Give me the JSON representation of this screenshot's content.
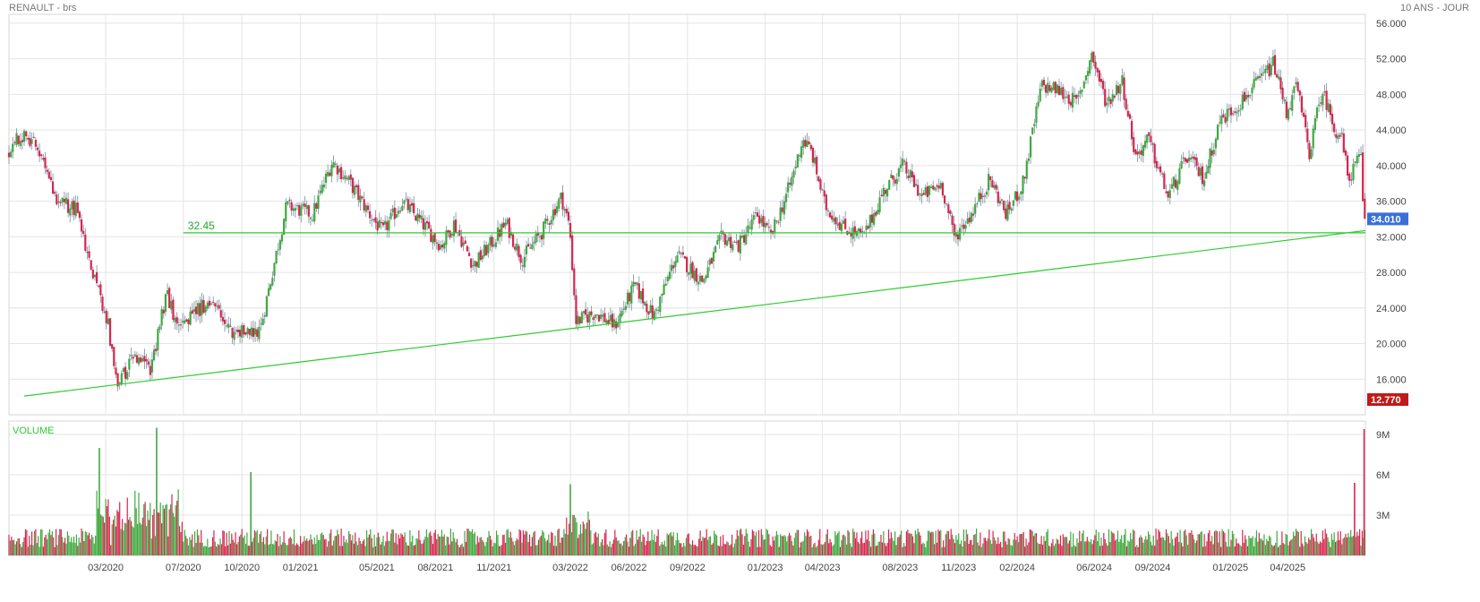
{
  "header": {
    "title": "RENAULT - brs",
    "period": "10 ANS - JOUR"
  },
  "colors": {
    "up": "#3fa93f",
    "down": "#d8254f",
    "trendline": "#2ecc2e",
    "last_price_badge": "#3b6fd8",
    "low_badge": "#c01a1a",
    "volume_label": "#2ecc2e"
  },
  "chart_data": [
    {
      "type": "candlestick",
      "name": "price",
      "title": "RENAULT - brs",
      "y_unit": "EUR",
      "ylim": [
        12.0,
        57.0
      ],
      "y_ticks": [
        56,
        52,
        48,
        44,
        40,
        36,
        32,
        28,
        24,
        20,
        16
      ],
      "y_tick_labels": [
        "56.000",
        "52.000",
        "48.000",
        "44.000",
        "40.000",
        "36.000",
        "32.000",
        "28.000",
        "24.000",
        "20.000",
        "16.000"
      ],
      "x_tick_labels": [
        "03/2020",
        "07/2020",
        "10/2020",
        "01/2021",
        "05/2021",
        "08/2021",
        "11/2021",
        "03/2022",
        "06/2022",
        "09/2022",
        "01/2023",
        "04/2023",
        "08/2023",
        "11/2023",
        "02/2024",
        "06/2024",
        "09/2024",
        "01/2025",
        "04/2025"
      ],
      "x_range": [
        "2019-10-01",
        "2025-08-01"
      ],
      "trend_path": [
        [
          "2019-10-01",
          41.5
        ],
        [
          "2019-10-20",
          43.5
        ],
        [
          "2019-11-15",
          42.0
        ],
        [
          "2019-12-15",
          36.0
        ],
        [
          "2020-01-15",
          35.0
        ],
        [
          "2020-02-10",
          28.0
        ],
        [
          "2020-03-05",
          22.0
        ],
        [
          "2020-03-20",
          14.8
        ],
        [
          "2020-04-10",
          18.5
        ],
        [
          "2020-05-10",
          16.8
        ],
        [
          "2020-06-05",
          26.0
        ],
        [
          "2020-06-20",
          21.5
        ],
        [
          "2020-07-15",
          23.5
        ],
        [
          "2020-08-10",
          24.5
        ],
        [
          "2020-09-15",
          21.5
        ],
        [
          "2020-10-28",
          21.0
        ],
        [
          "2020-12-10",
          35.5
        ],
        [
          "2021-01-20",
          34.5
        ],
        [
          "2021-02-20",
          40.5
        ],
        [
          "2021-03-20",
          38.0
        ],
        [
          "2021-04-20",
          34.5
        ],
        [
          "2021-05-10",
          32.5
        ],
        [
          "2021-06-10",
          36.0
        ],
        [
          "2021-07-05",
          34.0
        ],
        [
          "2021-08-10",
          31.0
        ],
        [
          "2021-08-30",
          33.5
        ],
        [
          "2021-09-30",
          28.8
        ],
        [
          "2021-10-25",
          31.0
        ],
        [
          "2021-11-20",
          33.5
        ],
        [
          "2021-12-15",
          29.5
        ],
        [
          "2022-01-15",
          32.5
        ],
        [
          "2022-02-15",
          36.5
        ],
        [
          "2022-02-28",
          33.0
        ],
        [
          "2022-03-10",
          22.5
        ],
        [
          "2022-04-10",
          23.5
        ],
        [
          "2022-05-10",
          22.0
        ],
        [
          "2022-06-10",
          26.5
        ],
        [
          "2022-07-10",
          23.0
        ],
        [
          "2022-08-15",
          30.0
        ],
        [
          "2022-09-25",
          27.0
        ],
        [
          "2022-10-25",
          32.0
        ],
        [
          "2022-11-20",
          31.0
        ],
        [
          "2022-12-20",
          34.5
        ],
        [
          "2023-01-10",
          32.0
        ],
        [
          "2023-02-10",
          38.0
        ],
        [
          "2023-03-01",
          43.0
        ],
        [
          "2023-03-15",
          41.5
        ],
        [
          "2023-04-05",
          35.5
        ],
        [
          "2023-05-05",
          33.0
        ],
        [
          "2023-06-05",
          32.0
        ],
        [
          "2023-07-05",
          37.0
        ],
        [
          "2023-08-05",
          40.0
        ],
        [
          "2023-09-05",
          36.5
        ],
        [
          "2023-10-05",
          38.0
        ],
        [
          "2023-10-25",
          32.0
        ],
        [
          "2023-11-20",
          34.5
        ],
        [
          "2023-12-20",
          38.5
        ],
        [
          "2024-01-15",
          34.5
        ],
        [
          "2024-02-10",
          38.0
        ],
        [
          "2024-03-10",
          49.0
        ],
        [
          "2024-04-05",
          48.5
        ],
        [
          "2024-05-05",
          47.0
        ],
        [
          "2024-05-28",
          52.5
        ],
        [
          "2024-06-20",
          47.0
        ],
        [
          "2024-07-15",
          49.5
        ],
        [
          "2024-08-05",
          41.0
        ],
        [
          "2024-08-25",
          43.0
        ],
        [
          "2024-09-25",
          36.5
        ],
        [
          "2024-10-25",
          41.0
        ],
        [
          "2024-11-20",
          38.5
        ],
        [
          "2024-12-15",
          45.0
        ],
        [
          "2025-01-15",
          47.0
        ],
        [
          "2025-02-15",
          49.5
        ],
        [
          "2025-03-10",
          51.5
        ],
        [
          "2025-03-30",
          46.0
        ],
        [
          "2025-04-15",
          49.0
        ],
        [
          "2025-05-05",
          41.5
        ],
        [
          "2025-05-25",
          48.5
        ],
        [
          "2025-06-15",
          44.0
        ],
        [
          "2025-06-25",
          43.0
        ],
        [
          "2025-07-05",
          38.5
        ],
        [
          "2025-07-20",
          40.5
        ],
        [
          "2025-07-25",
          41.0
        ],
        [
          "2025-07-28",
          35.5
        ],
        [
          "2025-08-01",
          34.01
        ]
      ],
      "annotations": [
        {
          "type": "hline",
          "label": "32.45",
          "y": 32.45,
          "from": "2020-07-01",
          "to": "2025-08-01"
        },
        {
          "type": "trendline",
          "from": [
            "2019-10-25",
            14.1
          ],
          "to": [
            "2025-08-01",
            32.7
          ]
        }
      ],
      "last_price": {
        "label": "34.010",
        "value": 34.01
      },
      "low_marker": {
        "label": "12.770",
        "value": 12.77
      },
      "grid": true
    },
    {
      "type": "bar",
      "name": "volume",
      "title": "VOLUME",
      "ylim": [
        0,
        10000000
      ],
      "y_ticks": [
        3000000,
        6000000,
        9000000
      ],
      "y_tick_labels": [
        "3M",
        "6M",
        "9M"
      ],
      "spikes": [
        {
          "date": "2020-02-20",
          "value": 8000000
        },
        {
          "date": "2020-05-20",
          "value": 9500000
        },
        {
          "date": "2020-10-15",
          "value": 6200000
        },
        {
          "date": "2022-03-01",
          "value": 5300000
        },
        {
          "date": "2025-07-15",
          "value": 5400000
        },
        {
          "date": "2025-07-30",
          "value": 9400000
        }
      ],
      "grid": true
    }
  ]
}
